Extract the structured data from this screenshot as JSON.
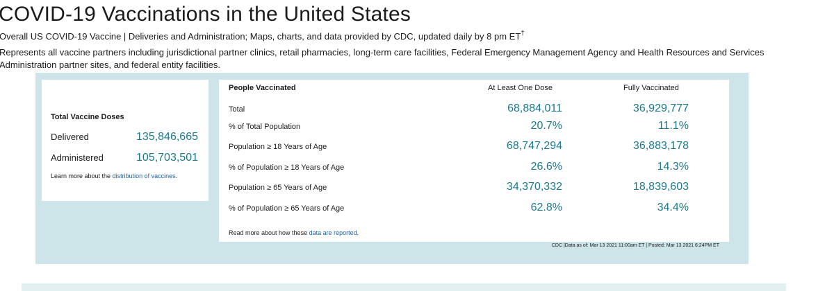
{
  "header": {
    "title": "COVID-19 Vaccinations in the United States",
    "subtitle": "Overall US COVID-19 Vaccine | Deliveries and Administration; Maps, charts, and data provided by CDC, updated daily by 8 pm ET",
    "dagger": "†",
    "description": "Represents all vaccine partners including jurisdictional partner clinics, retail pharmacies, long-term care facilities, Federal Emergency Management Agency and Health Resources and Services Administration partner sites, and federal entity facilities."
  },
  "total_doses": {
    "heading": "Total Vaccine Doses",
    "delivered_label": "Delivered",
    "delivered_value": "135,846,665",
    "administered_label": "Administered",
    "administered_value": "105,703,501",
    "learn_prefix": "Learn more about the ",
    "learn_link": "distribution of vaccines",
    "learn_suffix": "."
  },
  "people": {
    "heading": "People Vaccinated",
    "col1": "At Least One Dose",
    "col2": "Fully Vaccinated",
    "rows": [
      {
        "label": "Total",
        "one_dose": "68,884,011",
        "fully": "36,929,777"
      },
      {
        "label": "% of Total Population",
        "one_dose": "20.7%",
        "fully": "11.1%"
      },
      {
        "label": "Population ≥ 18 Years of Age",
        "one_dose": "68,747,294",
        "fully": "36,883,178"
      },
      {
        "label": "% of Population ≥ 18 Years of Age",
        "one_dose": "26.6%",
        "fully": "14.3%"
      },
      {
        "label": "Population ≥ 65 Years of Age",
        "one_dose": "34,370,332",
        "fully": "18,839,603"
      },
      {
        "label": "% of Population ≥ 65 Years of Age",
        "one_dose": "62.8%",
        "fully": "34.4%"
      }
    ],
    "read_prefix": "Read more about how these ",
    "read_link": "data are reported",
    "read_suffix": "."
  },
  "footnote": "CDC |Data as of: Mar 13 2021 11:00am ET | Posted: Mar 13 2021 6:24PM ET",
  "colors": {
    "accent_value": "#1a7a8c",
    "link": "#1a5fa8",
    "panel_bg": "#cde4e8"
  }
}
